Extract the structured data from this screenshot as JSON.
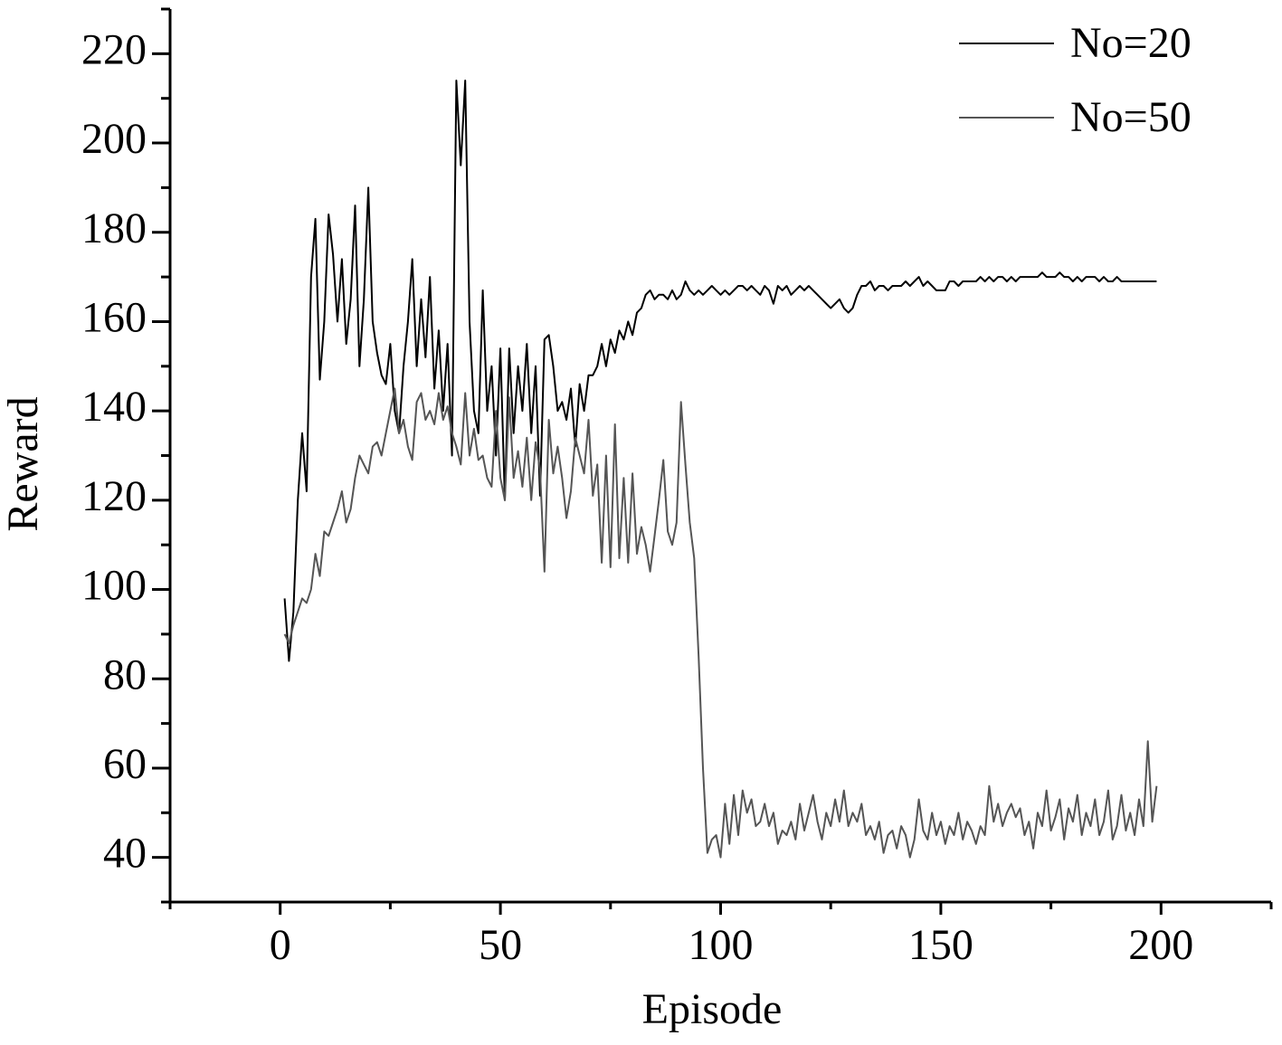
{
  "chart_data": {
    "type": "line",
    "xlabel": "Episode",
    "ylabel": "Reward",
    "xlim": [
      -25,
      225
    ],
    "xticks": [
      0,
      50,
      100,
      150,
      200
    ],
    "ylim": [
      30,
      230
    ],
    "yticks": [
      40,
      60,
      80,
      100,
      120,
      140,
      160,
      180,
      200,
      220
    ],
    "legend": "upper right",
    "x": [
      1,
      2,
      3,
      4,
      5,
      6,
      7,
      8,
      9,
      10,
      11,
      12,
      13,
      14,
      15,
      16,
      17,
      18,
      19,
      20,
      21,
      22,
      23,
      24,
      25,
      26,
      27,
      28,
      29,
      30,
      31,
      32,
      33,
      34,
      35,
      36,
      37,
      38,
      39,
      40,
      41,
      42,
      43,
      44,
      45,
      46,
      47,
      48,
      49,
      50,
      51,
      52,
      53,
      54,
      55,
      56,
      57,
      58,
      59,
      60,
      61,
      62,
      63,
      64,
      65,
      66,
      67,
      68,
      69,
      70,
      71,
      72,
      73,
      74,
      75,
      76,
      77,
      78,
      79,
      80,
      81,
      82,
      83,
      84,
      85,
      86,
      87,
      88,
      89,
      90,
      91,
      92,
      93,
      94,
      95,
      96,
      97,
      98,
      99,
      100,
      101,
      102,
      103,
      104,
      105,
      106,
      107,
      108,
      109,
      110,
      111,
      112,
      113,
      114,
      115,
      116,
      117,
      118,
      119,
      120,
      121,
      122,
      123,
      124,
      125,
      126,
      127,
      128,
      129,
      130,
      131,
      132,
      133,
      134,
      135,
      136,
      137,
      138,
      139,
      140,
      141,
      142,
      143,
      144,
      145,
      146,
      147,
      148,
      149,
      150,
      151,
      152,
      153,
      154,
      155,
      156,
      157,
      158,
      159,
      160,
      161,
      162,
      163,
      164,
      165,
      166,
      167,
      168,
      169,
      170,
      171,
      172,
      173,
      174,
      175,
      176,
      177,
      178,
      179,
      180,
      181,
      182,
      183,
      184,
      185,
      186,
      187,
      188,
      189,
      190,
      191,
      192,
      193,
      194,
      195,
      196,
      197,
      198,
      199
    ],
    "series": [
      {
        "name": "No=20",
        "color": "#000000",
        "values": [
          98,
          84,
          95,
          120,
          135,
          122,
          170,
          183,
          147,
          160,
          184,
          175,
          160,
          174,
          155,
          165,
          186,
          150,
          165,
          190,
          160,
          153,
          148,
          146,
          155,
          140,
          135,
          150,
          160,
          174,
          150,
          165,
          152,
          170,
          145,
          158,
          140,
          155,
          130,
          214,
          195,
          214,
          160,
          140,
          135,
          167,
          140,
          150,
          130,
          154,
          120,
          154,
          135,
          150,
          140,
          155,
          135,
          150,
          121,
          156,
          157,
          150,
          140,
          142,
          138,
          145,
          132,
          146,
          140,
          148,
          148,
          150,
          155,
          150,
          156,
          153,
          158,
          156,
          160,
          157,
          162,
          163,
          166,
          167,
          165,
          166,
          166,
          165,
          167,
          165,
          166,
          169,
          167,
          166,
          167,
          166,
          167,
          168,
          167,
          166,
          167,
          166,
          167,
          168,
          168,
          167,
          168,
          167,
          166,
          168,
          167,
          164,
          168,
          167,
          168,
          166,
          167,
          168,
          167,
          168,
          167,
          166,
          165,
          164,
          163,
          164,
          165,
          163,
          162,
          163,
          166,
          168,
          168,
          169,
          167,
          168,
          168,
          167,
          168,
          168,
          168,
          169,
          168,
          169,
          170,
          168,
          169,
          168,
          167,
          167,
          167,
          169,
          169,
          168,
          169,
          169,
          169,
          169,
          170,
          169,
          170,
          169,
          170,
          170,
          169,
          170,
          169,
          170,
          170,
          170,
          170,
          170,
          171,
          170,
          170,
          170,
          171,
          170,
          170,
          169,
          170,
          169,
          170,
          170,
          170,
          169,
          170,
          169,
          169,
          170,
          169,
          169,
          169,
          169,
          169,
          169,
          169,
          169,
          169
        ]
      },
      {
        "name": "No=50",
        "color": "#555555",
        "values": [
          90,
          88,
          92,
          95,
          98,
          97,
          100,
          108,
          103,
          113,
          112,
          115,
          118,
          122,
          115,
          118,
          125,
          130,
          128,
          126,
          132,
          133,
          130,
          135,
          140,
          145,
          135,
          138,
          132,
          129,
          142,
          144,
          138,
          140,
          137,
          144,
          138,
          141,
          135,
          132,
          128,
          144,
          130,
          136,
          129,
          130,
          125,
          123,
          140,
          125,
          120,
          143,
          125,
          131,
          123,
          134,
          120,
          133,
          127,
          104,
          138,
          126,
          132,
          125,
          116,
          122,
          134,
          130,
          126,
          138,
          121,
          128,
          106,
          130,
          105,
          137,
          107,
          125,
          106,
          126,
          108,
          114,
          110,
          104,
          112,
          120,
          129,
          113,
          110,
          115,
          142,
          128,
          115,
          107,
          85,
          60,
          41,
          44,
          45,
          40,
          52,
          43,
          54,
          45,
          55,
          50,
          53,
          47,
          48,
          52,
          47,
          50,
          43,
          46,
          45,
          48,
          44,
          52,
          46,
          50,
          54,
          48,
          44,
          50,
          47,
          53,
          48,
          55,
          47,
          50,
          48,
          52,
          45,
          47,
          44,
          48,
          41,
          45,
          46,
          42,
          47,
          45,
          40,
          44,
          53,
          46,
          44,
          50,
          45,
          48,
          43,
          47,
          45,
          50,
          44,
          48,
          46,
          43,
          47,
          45,
          56,
          48,
          52,
          47,
          50,
          52,
          49,
          51,
          45,
          48,
          42,
          50,
          47,
          55,
          46,
          49,
          53,
          44,
          51,
          48,
          54,
          45,
          50,
          47,
          53,
          45,
          48,
          55,
          44,
          47,
          54,
          46,
          50,
          45,
          53,
          47,
          66,
          48,
          56
        ]
      }
    ]
  }
}
